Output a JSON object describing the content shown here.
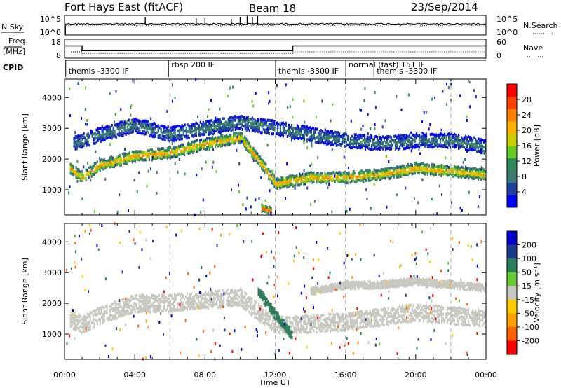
{
  "header": {
    "radar": "Fort Hays East (fitACF)",
    "beam": "Beam 18",
    "date": "23/Sep/2014"
  },
  "noise_panel": {
    "left_label": "N.Sky",
    "right_label": "N.Search",
    "left_ticks": [
      "10^5",
      "10^0"
    ],
    "right_ticks": [
      "10^5",
      "10^0"
    ]
  },
  "freq_panel": {
    "left_label_1": "Freq.",
    "left_label_2": "[MHz]",
    "right_label": "Nave",
    "left_ticks": [
      "18",
      "8"
    ],
    "right_ticks": [
      "60",
      "0"
    ],
    "freq_mhz": [
      {
        "t": 0,
        "v": 14.5
      },
      {
        "t": 1.0,
        "v": 14.5
      },
      {
        "t": 1.0,
        "v": 12.0
      },
      {
        "t": 13.0,
        "v": 12.0
      },
      {
        "t": 13.0,
        "v": 14.5
      },
      {
        "t": 24.0,
        "v": 14.5
      }
    ],
    "nave": [
      {
        "t": 0,
        "v": 20
      },
      {
        "t": 1.0,
        "v": 20
      },
      {
        "t": 1.0,
        "v": 15
      },
      {
        "t": 13.0,
        "v": 15
      },
      {
        "t": 13.0,
        "v": 20
      },
      {
        "t": 24.0,
        "v": 20
      }
    ]
  },
  "cpid_panel": {
    "label": "CPID",
    "segments": [
      {
        "start": 0.15,
        "text": "themis -3300 IF"
      },
      {
        "start": 6.0,
        "text": "rbsp 200 IF"
      },
      {
        "start": 12.1,
        "text": "themis -3300 IF"
      },
      {
        "start": 16.1,
        "text": "normal (fast) 151 IF"
      },
      {
        "start": 17.7,
        "text": "themis -3300 IF"
      }
    ]
  },
  "axes": {
    "ylabel": "Slant Range [km]",
    "xlabel": "Time UT",
    "x_ticks": [
      "00:00",
      "04:00",
      "08:00",
      "12:00",
      "16:00",
      "20:00",
      "00:00"
    ],
    "y_ticks": [
      "1000",
      "2000",
      "3000",
      "4000"
    ]
  },
  "power_colorbar": {
    "label": "Power [dB]",
    "ticks": [
      "4",
      "8",
      "12",
      "16",
      "20",
      "24",
      "28"
    ],
    "colors": [
      "#0000ff",
      "#2040a0",
      "#3a7a70",
      "#2e8b57",
      "#66cc22",
      "#cccc00",
      "#ffb000",
      "#ff8000",
      "#ff4000",
      "#ff0000"
    ]
  },
  "velocity_colorbar": {
    "label": "Velocity [m s⁻¹]",
    "ticks": [
      "200",
      "100",
      "50",
      "15",
      "-15",
      "-50",
      "-100",
      "-200"
    ],
    "colors": [
      "#0000cc",
      "#1e3a8a",
      "#2e7d5b",
      "#66cc33",
      "#c8c8c0",
      "#ffcc00",
      "#ffa000",
      "#ff6000",
      "#ff0000"
    ]
  },
  "chart_data": {
    "type": "heatmap",
    "x_range_ut_hours": [
      0,
      24
    ],
    "y_range_km": [
      180,
      4600
    ],
    "dashed_time_markers_ut_hours": [
      6,
      12,
      16,
      22
    ],
    "power_bands": [
      {
        "name": "main_backscatter",
        "points": [
          [
            0.3,
            1700
          ],
          [
            1,
            1400
          ],
          [
            2,
            1800
          ],
          [
            4,
            2100
          ],
          [
            6,
            2200
          ],
          [
            8,
            2500
          ],
          [
            10,
            2700
          ],
          [
            11,
            2000
          ],
          [
            12,
            1200
          ],
          [
            13,
            1300
          ],
          [
            14,
            1400
          ],
          [
            16,
            1400
          ],
          [
            18,
            1500
          ],
          [
            20,
            1700
          ],
          [
            22,
            1600
          ],
          [
            24,
            1500
          ]
        ],
        "width_km": 300,
        "dB": 22
      },
      {
        "name": "upper_scatter",
        "points": [
          [
            0.5,
            2500
          ],
          [
            2,
            2800
          ],
          [
            4,
            3100
          ],
          [
            6,
            2800
          ],
          [
            8,
            3000
          ],
          [
            10,
            3200
          ],
          [
            14,
            2800
          ],
          [
            16,
            2600
          ],
          [
            18,
            2500
          ],
          [
            20,
            2600
          ],
          [
            22,
            2600
          ],
          [
            24,
            2400
          ]
        ],
        "width_km": 400,
        "dB": 10
      },
      {
        "name": "near_range_blob",
        "points": [
          [
            11.2,
            400
          ],
          [
            11.8,
            300
          ]
        ],
        "width_km": 200,
        "dB": 28
      }
    ],
    "velocity_bands": [
      {
        "name": "ground_scatter_main",
        "points": [
          [
            0.3,
            1500
          ],
          [
            1,
            1300
          ],
          [
            2,
            1600
          ],
          [
            4,
            2000
          ],
          [
            6,
            2000
          ],
          [
            8,
            2100
          ],
          [
            10,
            2200
          ],
          [
            11,
            1700
          ],
          [
            12,
            1300
          ],
          [
            13,
            1300
          ],
          [
            16,
            1400
          ],
          [
            20,
            1700
          ],
          [
            22,
            1600
          ],
          [
            24,
            1500
          ]
        ],
        "width_km": 500,
        "vel": 0
      },
      {
        "name": "upper_ground_scatter",
        "points": [
          [
            14,
            2400
          ],
          [
            16,
            2600
          ],
          [
            18,
            2600
          ],
          [
            20,
            2700
          ],
          [
            24,
            2500
          ]
        ],
        "width_km": 200,
        "vel": 0
      },
      {
        "name": "positive_streak",
        "points": [
          [
            11,
            2400
          ],
          [
            12,
            1600
          ],
          [
            13,
            900
          ]
        ],
        "width_km": 250,
        "vel": 40
      }
    ]
  }
}
